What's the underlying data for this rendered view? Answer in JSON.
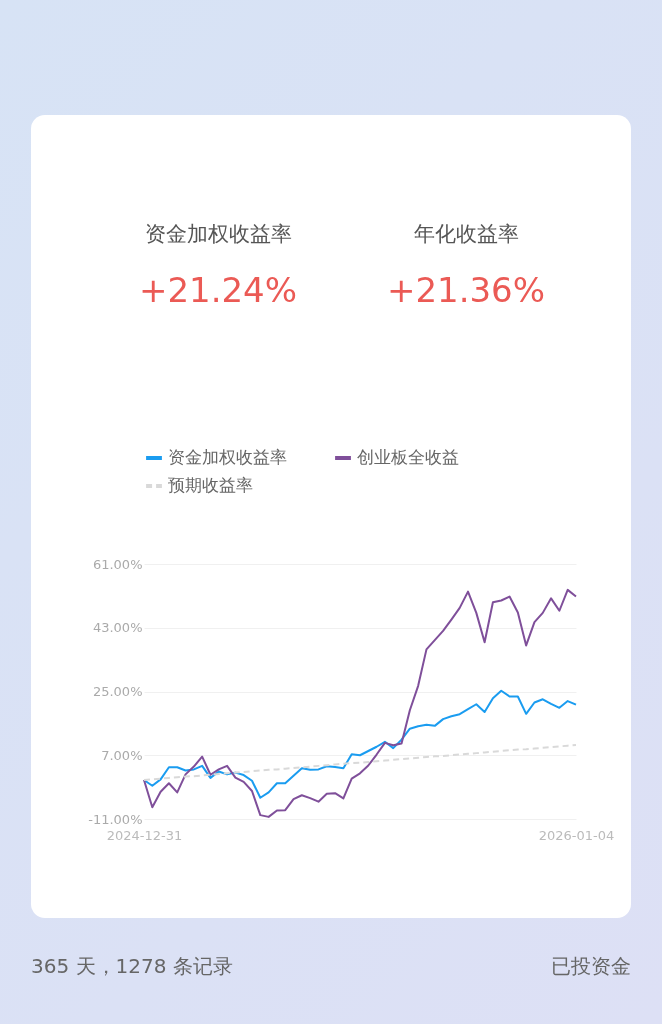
{
  "chart_data": {
    "type": "line",
    "annotations": [
      "资金加权收益率",
      "+21.24%",
      "年化收益率",
      "+21.36%",
      "365 天，1278 条记录",
      "已投资金"
    ],
    "categories": [
      "2024-12-31",
      null,
      null,
      null,
      null,
      null,
      null,
      null,
      null,
      null,
      null,
      null,
      null,
      null,
      null,
      null,
      null,
      null,
      null,
      null,
      null,
      null,
      null,
      null,
      null,
      null,
      null,
      null,
      null,
      null,
      null,
      null,
      null,
      null,
      null,
      null,
      null,
      null,
      null,
      null,
      null,
      null,
      null,
      null,
      null,
      null,
      null,
      null,
      null,
      null,
      null,
      null,
      "2026-01-04"
    ],
    "series": [
      {
        "name": "资金加权收益率",
        "color": "#1a9cf0",
        "values": [
          0.0,
          -1.6,
          0.2,
          3.6,
          3.6,
          2.7,
          3.0,
          4.0,
          0.6,
          2.4,
          1.6,
          2.1,
          1.4,
          -0.2,
          -5.0,
          -3.5,
          -0.9,
          -0.9,
          1.2,
          3.3,
          2.9,
          3.0,
          3.9,
          3.7,
          3.3,
          7.3,
          7.0,
          8.2,
          9.4,
          10.8,
          9.0,
          11.4,
          14.5,
          15.2,
          15.6,
          15.3,
          17.2,
          18.0,
          18.6,
          20.0,
          21.4,
          19.2,
          23.1,
          25.2,
          23.6,
          23.6,
          18.7,
          21.9,
          22.8,
          21.5,
          20.4,
          22.3,
          21.3
        ]
      },
      {
        "name": "创业板全收益",
        "color": "#7f4f9a",
        "values": [
          0.0,
          -7.7,
          -3.3,
          -0.9,
          -3.5,
          1.6,
          3.8,
          6.6,
          1.5,
          3.0,
          4.0,
          0.7,
          -0.5,
          -3.1,
          -9.9,
          -10.4,
          -8.6,
          -8.5,
          -5.4,
          -4.3,
          -5.1,
          -6.1,
          -3.9,
          -3.7,
          -5.2,
          0.4,
          1.9,
          4.1,
          7.2,
          10.5,
          9.8,
          10.3,
          19.7,
          26.6,
          36.9,
          39.5,
          42.1,
          45.3,
          48.6,
          53.2,
          47.2,
          38.9,
          50.2,
          50.7,
          51.8,
          47.3,
          38.0,
          44.6,
          47.2,
          51.3,
          47.8,
          53.7,
          51.8
        ]
      },
      {
        "name": "预期收益率",
        "color": "#d9d9d9",
        "line_style": "dashed",
        "values": [
          0.0,
          0.2,
          0.4,
          0.6,
          0.8,
          1.0,
          1.1,
          1.3,
          1.5,
          1.7,
          1.9,
          2.1,
          2.3,
          2.5,
          2.7,
          2.9,
          3.0,
          3.2,
          3.4,
          3.6,
          3.8,
          4.0,
          4.2,
          4.4,
          4.6,
          4.8,
          4.9,
          5.1,
          5.3,
          5.5,
          5.7,
          5.9,
          6.1,
          6.3,
          6.5,
          6.7,
          6.8,
          7.0,
          7.2,
          7.4,
          7.6,
          7.8,
          8.0,
          8.2,
          8.4,
          8.6,
          8.7,
          8.9,
          9.1,
          9.3,
          9.5,
          9.7,
          9.9
        ]
      }
    ],
    "ylim": [
      -11,
      61
    ],
    "yticks": [
      {
        "value": -11,
        "label": "-11.00%"
      },
      {
        "value": 7,
        "label": "7.00%"
      },
      {
        "value": 25,
        "label": "25.00%"
      },
      {
        "value": 43,
        "label": "43.00%"
      },
      {
        "value": 61,
        "label": "61.00%"
      }
    ],
    "grid": "y",
    "legend": "top",
    "marker": "none",
    "line_style": "solid"
  }
}
